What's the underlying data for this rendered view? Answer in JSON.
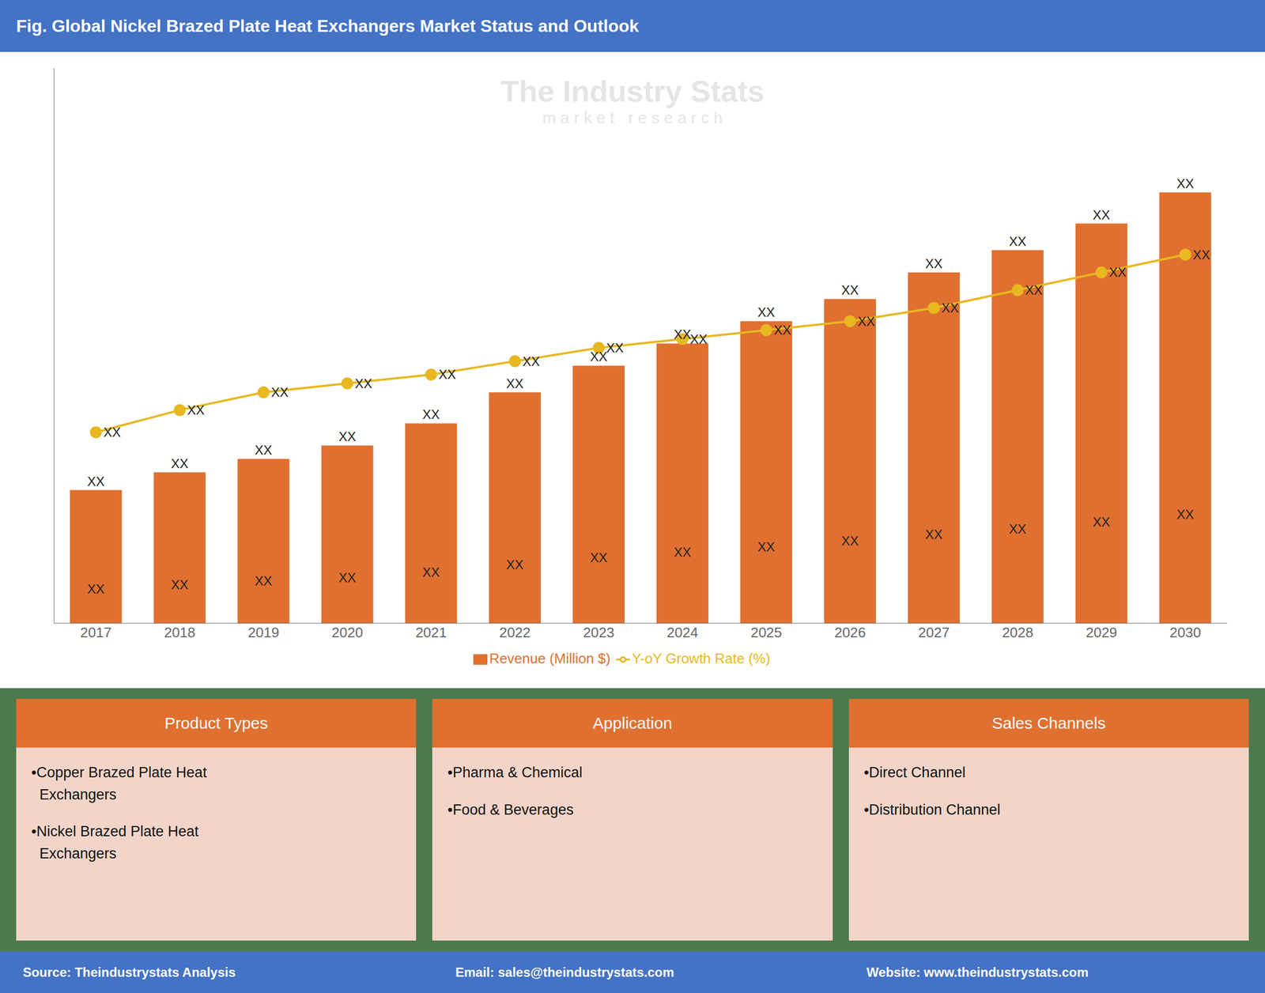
{
  "chart_data": {
    "type": "bar",
    "title": "Fig. Global Nickel Brazed Plate Heat Exchangers Market Status and Outlook",
    "categories": [
      2017,
      2018,
      2019,
      2020,
      2021,
      2022,
      2023,
      2024,
      2025,
      2026,
      2027,
      2028,
      2029,
      2030
    ],
    "series": [
      {
        "name": "Revenue (Million $)",
        "type": "bar",
        "color": "#E07030",
        "values": [
          0.3,
          0.34,
          0.37,
          0.4,
          0.45,
          0.52,
          0.58,
          0.63,
          0.68,
          0.73,
          0.79,
          0.84,
          0.9,
          0.97
        ],
        "value_labels": [
          "XX",
          "XX",
          "XX",
          "XX",
          "XX",
          "XX",
          "XX",
          "XX",
          "XX",
          "XX",
          "XX",
          "XX",
          "XX",
          "XX"
        ]
      },
      {
        "name": "Y-oY Growth Rate (%)",
        "type": "line",
        "color": "#E8B820",
        "marker": "circle",
        "values": [
          0.43,
          0.48,
          0.52,
          0.54,
          0.56,
          0.59,
          0.62,
          0.64,
          0.66,
          0.68,
          0.71,
          0.75,
          0.79,
          0.83
        ],
        "value_labels": [
          "XX",
          "XX",
          "XX",
          "XX",
          "XX",
          "XX",
          "XX",
          "XX",
          "XX",
          "XX",
          "XX",
          "XX",
          "XX",
          "XX"
        ]
      }
    ],
    "ylim": [
      0,
      1.25
    ],
    "yticks": [],
    "tick_labels": "x",
    "grid": false,
    "legend": "bottom",
    "data_labels": true,
    "annotations": [
      "The Industry Stats",
      "m a r k e t   r e s e a r c h"
    ],
    "panels": [
      {
        "header": "Product Types",
        "items": [
          "•Copper Brazed Plate Heat\n  Exchangers",
          "•Nickel Brazed Plate Heat\n  Exchangers"
        ]
      },
      {
        "header": "Application",
        "items": [
          "•Pharma & Chemical",
          "•Food & Beverages"
        ]
      },
      {
        "header": "Sales Channels",
        "items": [
          "•Direct Channel",
          "•Distribution Channel"
        ]
      }
    ],
    "footer": [
      "Source: Theindustrystats Analysis",
      "Email: sales@theindustrystats.com",
      "Website: www.theindustrystats.com"
    ]
  }
}
